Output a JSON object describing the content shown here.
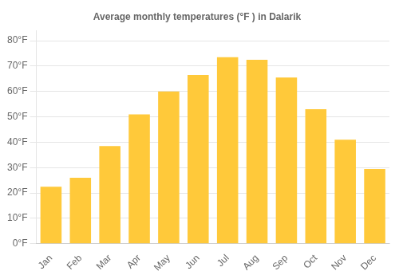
{
  "chart_data": {
    "type": "bar",
    "title": "Average monthly temperatures (°F ) in Dalarik",
    "categories": [
      "Jan",
      "Feb",
      "Mar",
      "Apr",
      "May",
      "Jun",
      "Jul",
      "Aug",
      "Sep",
      "Oct",
      "Nov",
      "Dec"
    ],
    "values": [
      22.5,
      26.0,
      38.5,
      51.0,
      60.0,
      66.5,
      73.5,
      72.5,
      65.5,
      53.0,
      41.0,
      29.5
    ],
    "color": "#FFC93A",
    "ylim": [
      0,
      84
    ],
    "yticks": [
      {
        "value": 0,
        "label": "0°F"
      },
      {
        "value": 10,
        "label": "10°F"
      },
      {
        "value": 20,
        "label": "20°F"
      },
      {
        "value": 30,
        "label": "30°F"
      },
      {
        "value": 40,
        "label": "40°F"
      },
      {
        "value": 50,
        "label": "50°F"
      },
      {
        "value": 60,
        "label": "60°F"
      },
      {
        "value": 70,
        "label": "70°F"
      },
      {
        "value": 80,
        "label": "80°F"
      }
    ],
    "grid": true
  }
}
